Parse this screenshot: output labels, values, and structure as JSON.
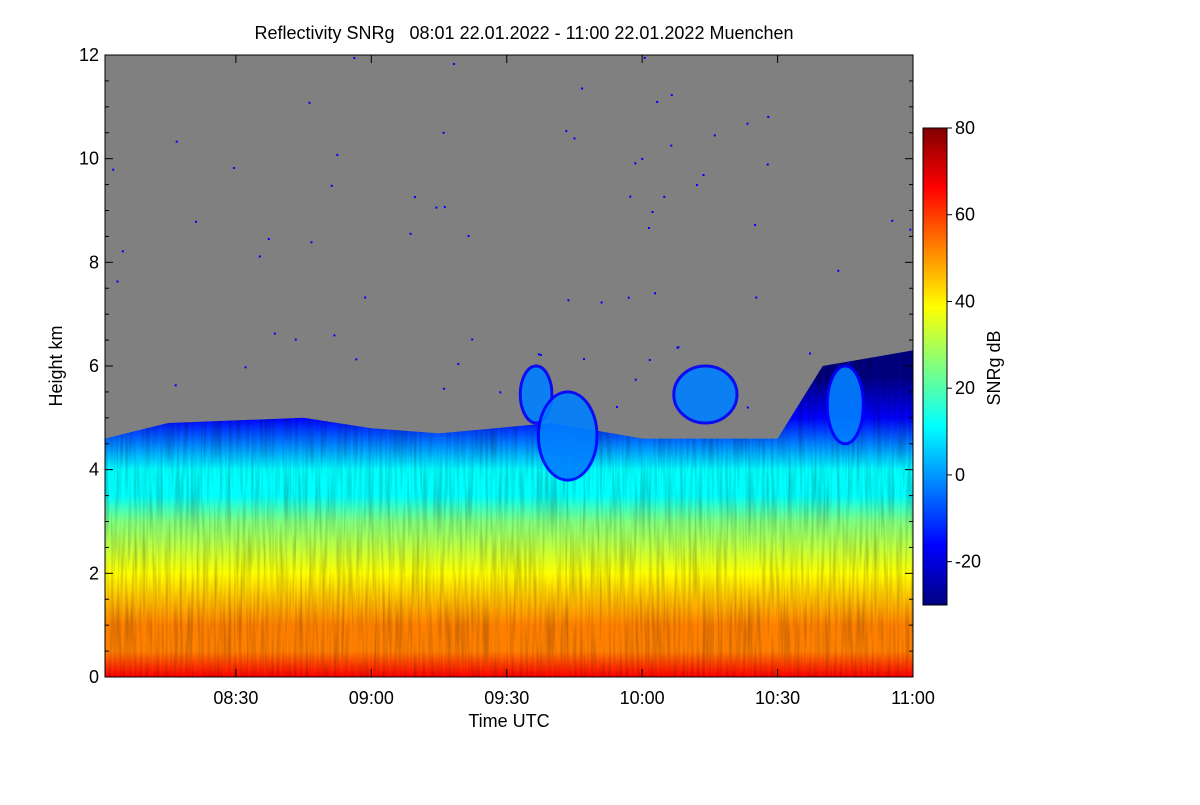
{
  "chart_data": {
    "type": "heatmap",
    "title": "Reflectivity SNRg   08:01 22.01.2022 - 11:00 22.01.2022 Muenchen",
    "xlabel": "Time UTC",
    "ylabel": "Height km",
    "x_range": [
      "08:01",
      "11:00"
    ],
    "x_ticks": [
      "08:30",
      "09:00",
      "09:30",
      "10:00",
      "10:30",
      "11:00"
    ],
    "ylim": [
      0,
      12
    ],
    "y_ticks": [
      0,
      2,
      4,
      6,
      8,
      10,
      12
    ],
    "colorbar": {
      "label": "SNRg dB",
      "range": [
        -30,
        80
      ],
      "ticks": [
        -20,
        0,
        20,
        40,
        60,
        80
      ],
      "colors": [
        "#000080",
        "#0000ff",
        "#0080ff",
        "#00ffff",
        "#80ff80",
        "#ffff00",
        "#ff8000",
        "#ff0000",
        "#800000"
      ]
    },
    "background_color": "#808080",
    "cloud_top_km": [
      {
        "t": "08:01",
        "h": 4.6
      },
      {
        "t": "08:15",
        "h": 4.9
      },
      {
        "t": "08:45",
        "h": 5.0
      },
      {
        "t": "09:00",
        "h": 4.8
      },
      {
        "t": "09:15",
        "h": 4.7
      },
      {
        "t": "09:40",
        "h": 4.9
      },
      {
        "t": "10:00",
        "h": 4.6
      },
      {
        "t": "10:30",
        "h": 4.6
      },
      {
        "t": "10:40",
        "h": 6.0
      },
      {
        "t": "11:00",
        "h": 6.3
      }
    ],
    "elevated_cloud_cells": [
      {
        "t_start": "09:33",
        "t_end": "09:40",
        "h_bottom": 4.9,
        "h_top": 6.0
      },
      {
        "t_start": "09:37",
        "t_end": "09:50",
        "h_bottom": 3.8,
        "h_top": 5.5
      },
      {
        "t_start": "10:07",
        "t_end": "10:21",
        "h_bottom": 4.9,
        "h_top": 6.0
      },
      {
        "t_start": "10:41",
        "t_end": "10:49",
        "h_bottom": 4.5,
        "h_top": 6.0
      }
    ],
    "profile_snr_db": [
      {
        "h": 0.0,
        "snr": 60
      },
      {
        "h": 0.5,
        "snr": 52
      },
      {
        "h": 1.0,
        "snr": 46
      },
      {
        "h": 2.0,
        "snr": 38
      },
      {
        "h": 3.0,
        "snr": 26
      },
      {
        "h": 3.5,
        "snr": 16
      },
      {
        "h": 4.0,
        "snr": 6
      },
      {
        "h": 4.5,
        "snr": -8
      },
      {
        "h": 5.0,
        "snr": -16
      }
    ]
  }
}
